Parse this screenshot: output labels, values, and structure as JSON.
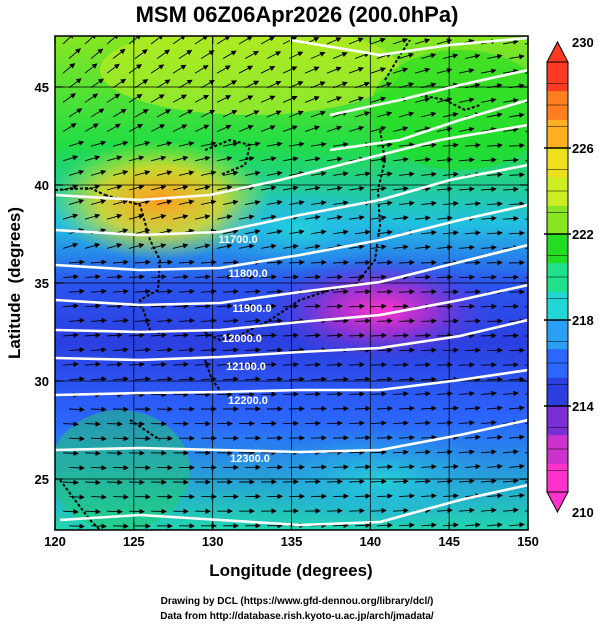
{
  "chart_data": {
    "type": "heatmap",
    "title": "MSM 06Z06Apr2026 (200.0hPa)",
    "xlabel": "Longitude (degrees)",
    "ylabel": "Latitude  (degrees)",
    "xlim": [
      120,
      150
    ],
    "ylim": [
      22.4,
      47.6
    ],
    "xticks": [
      120,
      125,
      130,
      135,
      140,
      145,
      150
    ],
    "yticks": [
      25,
      30,
      35,
      40,
      45
    ],
    "grid": true,
    "colorbar": {
      "range": [
        210,
        230
      ],
      "ticks": [
        210,
        214,
        218,
        222,
        226,
        230
      ],
      "colors": [
        "#ff33cc",
        "#cc33cc",
        "#7a2ed6",
        "#2b3fe0",
        "#2b66ff",
        "#2aa0f5",
        "#22d6d6",
        "#20e08a",
        "#22dd22",
        "#88e622",
        "#ccee22",
        "#f0e01c",
        "#ffb020",
        "#ff7f1e",
        "#ff3a22"
      ]
    },
    "contours": [
      {
        "label": "11700.0",
        "level": 11700
      },
      {
        "label": "11800.0",
        "level": 11800
      },
      {
        "label": "11900.0",
        "level": 11900
      },
      {
        "label": "12000.0",
        "level": 12000
      },
      {
        "label": "12100.0",
        "level": 12100
      },
      {
        "label": "12200.0",
        "level": 12200
      },
      {
        "label": "12300.0",
        "level": 12300
      }
    ],
    "credits": [
      "Drawing by DCL (https://www.gfd-dennou.org/library/dcl/)",
      "Data from http://database.rish.kyoto-u.ac.jp/arch/jmadata/"
    ]
  }
}
